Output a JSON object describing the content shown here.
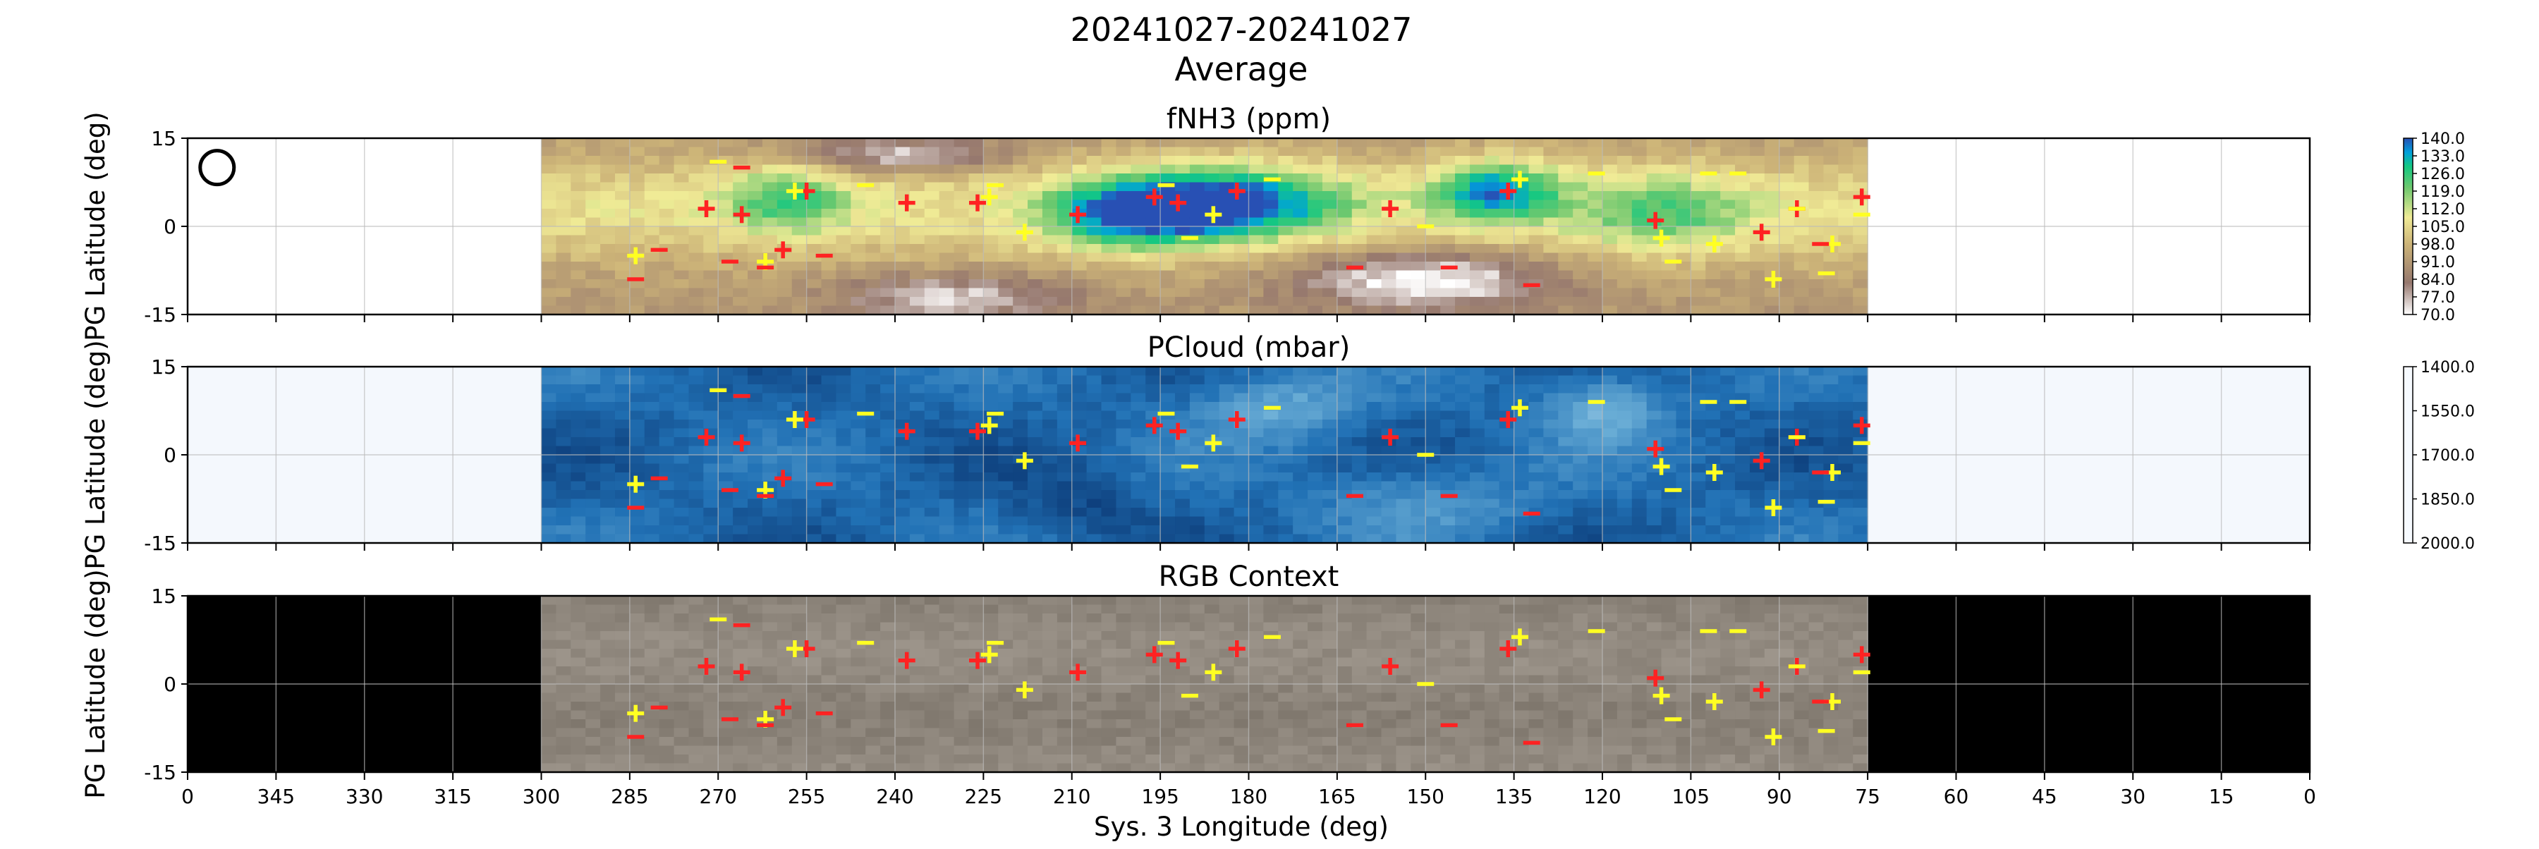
{
  "figure": {
    "title_line1": "20241027-20241027",
    "title_line2": "Average",
    "xlabel": "Sys. 3 Longitude (deg)"
  },
  "colors": {
    "cold_marker": "#ff2222",
    "warm_marker": "#ffff22",
    "out_of_range_top": "#f4f8fd",
    "rgb_background": "#000000"
  },
  "chart_data": [
    {
      "type": "heatmap",
      "name": "fNH3",
      "title": "fNH3 (ppm)",
      "ylabel": "PG Latitude (deg)",
      "xlim": [
        360,
        0
      ],
      "ylim": [
        -15,
        15
      ],
      "data_range_longitude": [
        300,
        75
      ],
      "yticks": [
        "15",
        "0",
        "-15"
      ],
      "colorbar": {
        "cmap": "terrain_r",
        "vmin": 70,
        "vmax": 140,
        "ticks": [
          "140.0",
          "133.0",
          "126.0",
          "119.0",
          "112.0",
          "105.0",
          "98.0",
          "91.0",
          "84.0",
          "77.0",
          "70.0"
        ]
      },
      "beam_marker": "circle (upper-left)",
      "grid": true
    },
    {
      "type": "heatmap",
      "name": "PCloud",
      "title": "PCloud (mbar)",
      "ylabel": "PG Latitude (deg)",
      "xlim": [
        360,
        0
      ],
      "ylim": [
        -15,
        15
      ],
      "data_range_longitude": [
        300,
        75
      ],
      "yticks": [
        "15",
        "0",
        "-15"
      ],
      "colorbar": {
        "cmap": "Blues",
        "vmin": 1400,
        "vmax": 2000,
        "inverted": true,
        "ticks": [
          "1400.0",
          "1550.0",
          "1700.0",
          "1850.0",
          "2000.0"
        ]
      },
      "grid": true
    },
    {
      "type": "heatmap",
      "name": "RGB",
      "title": "RGB Context",
      "ylabel": "PG Latitude (deg)",
      "xlim": [
        360,
        0
      ],
      "ylim": [
        -15,
        15
      ],
      "data_range_longitude": [
        300,
        75
      ],
      "yticks": [
        "15",
        "0",
        "-15"
      ],
      "xticks": [
        "0",
        "345",
        "330",
        "315",
        "300",
        "285",
        "270",
        "255",
        "240",
        "225",
        "210",
        "195",
        "180",
        "165",
        "150",
        "135",
        "120",
        "105",
        "90",
        "75",
        "60",
        "45",
        "30",
        "15",
        "0"
      ],
      "grid": true
    }
  ],
  "markers": {
    "red_plus": [
      [
        272,
        3
      ],
      [
        266,
        2
      ],
      [
        259,
        -4
      ],
      [
        255,
        6
      ],
      [
        238,
        4
      ],
      [
        226,
        4
      ],
      [
        209,
        2
      ],
      [
        196,
        5
      ],
      [
        192,
        4
      ],
      [
        182,
        6
      ],
      [
        156,
        3
      ],
      [
        136,
        6
      ],
      [
        111,
        1
      ],
      [
        93,
        -1
      ],
      [
        87,
        3
      ],
      [
        76,
        5
      ]
    ],
    "yellow_plus": [
      [
        284,
        -5
      ],
      [
        262,
        -6
      ],
      [
        257,
        6
      ],
      [
        224,
        5
      ],
      [
        218,
        -1
      ],
      [
        186,
        2
      ],
      [
        134,
        8
      ],
      [
        110,
        -2
      ],
      [
        101,
        -3
      ],
      [
        91,
        -9
      ],
      [
        81,
        -3
      ]
    ],
    "red_dash": [
      [
        284,
        -9
      ],
      [
        280,
        -4
      ],
      [
        268,
        -6
      ],
      [
        266,
        10
      ],
      [
        262,
        -7
      ],
      [
        252,
        -5
      ],
      [
        162,
        -7
      ],
      [
        146,
        -7
      ],
      [
        132,
        -10
      ],
      [
        83,
        -3
      ]
    ],
    "yellow_dash": [
      [
        270,
        11
      ],
      [
        245,
        7
      ],
      [
        223,
        7
      ],
      [
        194,
        7
      ],
      [
        190,
        -2
      ],
      [
        176,
        8
      ],
      [
        150,
        0
      ],
      [
        121,
        9
      ],
      [
        108,
        -6
      ],
      [
        102,
        9
      ],
      [
        97,
        9
      ],
      [
        87,
        3
      ],
      [
        82,
        -8
      ],
      [
        76,
        2
      ]
    ]
  }
}
